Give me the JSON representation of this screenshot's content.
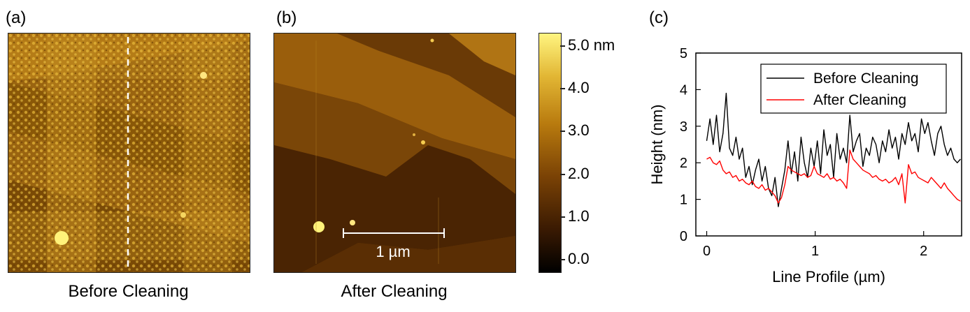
{
  "panels": {
    "a": {
      "label": "(a)",
      "caption": "Before Cleaning"
    },
    "b": {
      "label": "(b)",
      "caption": "After Cleaning",
      "scalebar_label": "1 µm"
    },
    "c": {
      "label": "(c)"
    }
  },
  "colorbar": {
    "ticks": [
      "5.0 nm",
      "4.0",
      "3.0",
      "2.0",
      "1.0",
      "0.0"
    ],
    "colors": [
      "#000000",
      "#3a1a02",
      "#7a4205",
      "#b87a0e",
      "#e2b634",
      "#fff580"
    ]
  },
  "chart_data": {
    "type": "line",
    "xlabel": "Line Profile (µm)",
    "ylabel": "Height (nm)",
    "xlim": [
      -0.1,
      2.35
    ],
    "ylim": [
      0,
      5
    ],
    "xticks": [
      0,
      1,
      2
    ],
    "yticks": [
      0,
      1,
      2,
      3,
      4,
      5
    ],
    "grid": false,
    "legend_position": "top-right",
    "series": [
      {
        "name": "Before Cleaning",
        "color": "#000000",
        "x": [
          0.0,
          0.03,
          0.06,
          0.09,
          0.12,
          0.15,
          0.18,
          0.21,
          0.24,
          0.27,
          0.3,
          0.33,
          0.36,
          0.39,
          0.42,
          0.45,
          0.48,
          0.51,
          0.54,
          0.57,
          0.6,
          0.63,
          0.66,
          0.69,
          0.72,
          0.75,
          0.78,
          0.81,
          0.84,
          0.87,
          0.9,
          0.93,
          0.96,
          0.99,
          1.02,
          1.05,
          1.08,
          1.11,
          1.14,
          1.17,
          1.2,
          1.23,
          1.26,
          1.29,
          1.32,
          1.35,
          1.38,
          1.41,
          1.44,
          1.47,
          1.5,
          1.53,
          1.56,
          1.59,
          1.62,
          1.65,
          1.68,
          1.71,
          1.74,
          1.77,
          1.8,
          1.83,
          1.86,
          1.89,
          1.92,
          1.95,
          1.98,
          2.01,
          2.04,
          2.07,
          2.1,
          2.13,
          2.16,
          2.19,
          2.22,
          2.25,
          2.28,
          2.31,
          2.34
        ],
        "y": [
          2.6,
          3.2,
          2.5,
          3.3,
          2.3,
          2.8,
          3.9,
          2.4,
          2.2,
          2.7,
          2.1,
          2.4,
          1.6,
          1.9,
          1.4,
          1.8,
          2.1,
          1.5,
          1.9,
          1.3,
          1.1,
          1.6,
          0.8,
          1.3,
          1.8,
          2.6,
          1.7,
          2.3,
          1.5,
          2.7,
          2.0,
          1.6,
          2.4,
          1.9,
          2.6,
          1.7,
          2.9,
          2.2,
          2.5,
          1.6,
          2.8,
          2.1,
          2.4,
          2.0,
          3.3,
          2.3,
          2.6,
          2.8,
          1.9,
          2.4,
          2.2,
          2.7,
          2.5,
          2.0,
          2.6,
          2.3,
          2.9,
          2.4,
          2.7,
          2.1,
          2.8,
          2.5,
          3.1,
          2.6,
          2.8,
          2.3,
          3.2,
          2.8,
          3.1,
          2.6,
          2.2,
          2.8,
          3.0,
          2.5,
          2.2,
          2.4,
          2.1,
          2.0,
          2.1
        ]
      },
      {
        "name": "After Cleaning",
        "color": "#ff0000",
        "x": [
          0.0,
          0.03,
          0.06,
          0.09,
          0.12,
          0.15,
          0.18,
          0.21,
          0.24,
          0.27,
          0.3,
          0.33,
          0.36,
          0.39,
          0.42,
          0.45,
          0.48,
          0.51,
          0.54,
          0.57,
          0.6,
          0.63,
          0.66,
          0.69,
          0.72,
          0.75,
          0.78,
          0.81,
          0.84,
          0.87,
          0.9,
          0.93,
          0.96,
          0.99,
          1.02,
          1.05,
          1.08,
          1.11,
          1.14,
          1.17,
          1.2,
          1.23,
          1.26,
          1.29,
          1.32,
          1.35,
          1.38,
          1.41,
          1.44,
          1.47,
          1.5,
          1.53,
          1.56,
          1.59,
          1.62,
          1.65,
          1.68,
          1.71,
          1.74,
          1.77,
          1.8,
          1.83,
          1.86,
          1.89,
          1.92,
          1.95,
          1.98,
          2.01,
          2.04,
          2.07,
          2.1,
          2.13,
          2.16,
          2.19,
          2.22,
          2.25,
          2.28,
          2.31,
          2.34
        ],
        "y": [
          2.1,
          2.15,
          2.0,
          1.95,
          2.05,
          1.8,
          1.7,
          1.75,
          1.6,
          1.65,
          1.5,
          1.55,
          1.45,
          1.4,
          1.5,
          1.35,
          1.3,
          1.4,
          1.25,
          1.3,
          1.2,
          1.1,
          0.9,
          1.05,
          1.4,
          1.9,
          1.8,
          1.75,
          1.7,
          1.65,
          1.7,
          1.6,
          1.65,
          1.9,
          1.7,
          1.65,
          1.6,
          1.7,
          1.55,
          1.6,
          1.5,
          1.55,
          1.45,
          1.3,
          2.35,
          2.1,
          2.0,
          1.9,
          1.8,
          1.75,
          1.7,
          1.6,
          1.65,
          1.55,
          1.5,
          1.55,
          1.45,
          1.5,
          1.6,
          1.4,
          1.7,
          0.9,
          1.95,
          1.7,
          1.75,
          1.6,
          1.55,
          1.5,
          1.45,
          1.6,
          1.5,
          1.4,
          1.3,
          1.45,
          1.3,
          1.2,
          1.1,
          1.0,
          0.95
        ]
      }
    ]
  }
}
